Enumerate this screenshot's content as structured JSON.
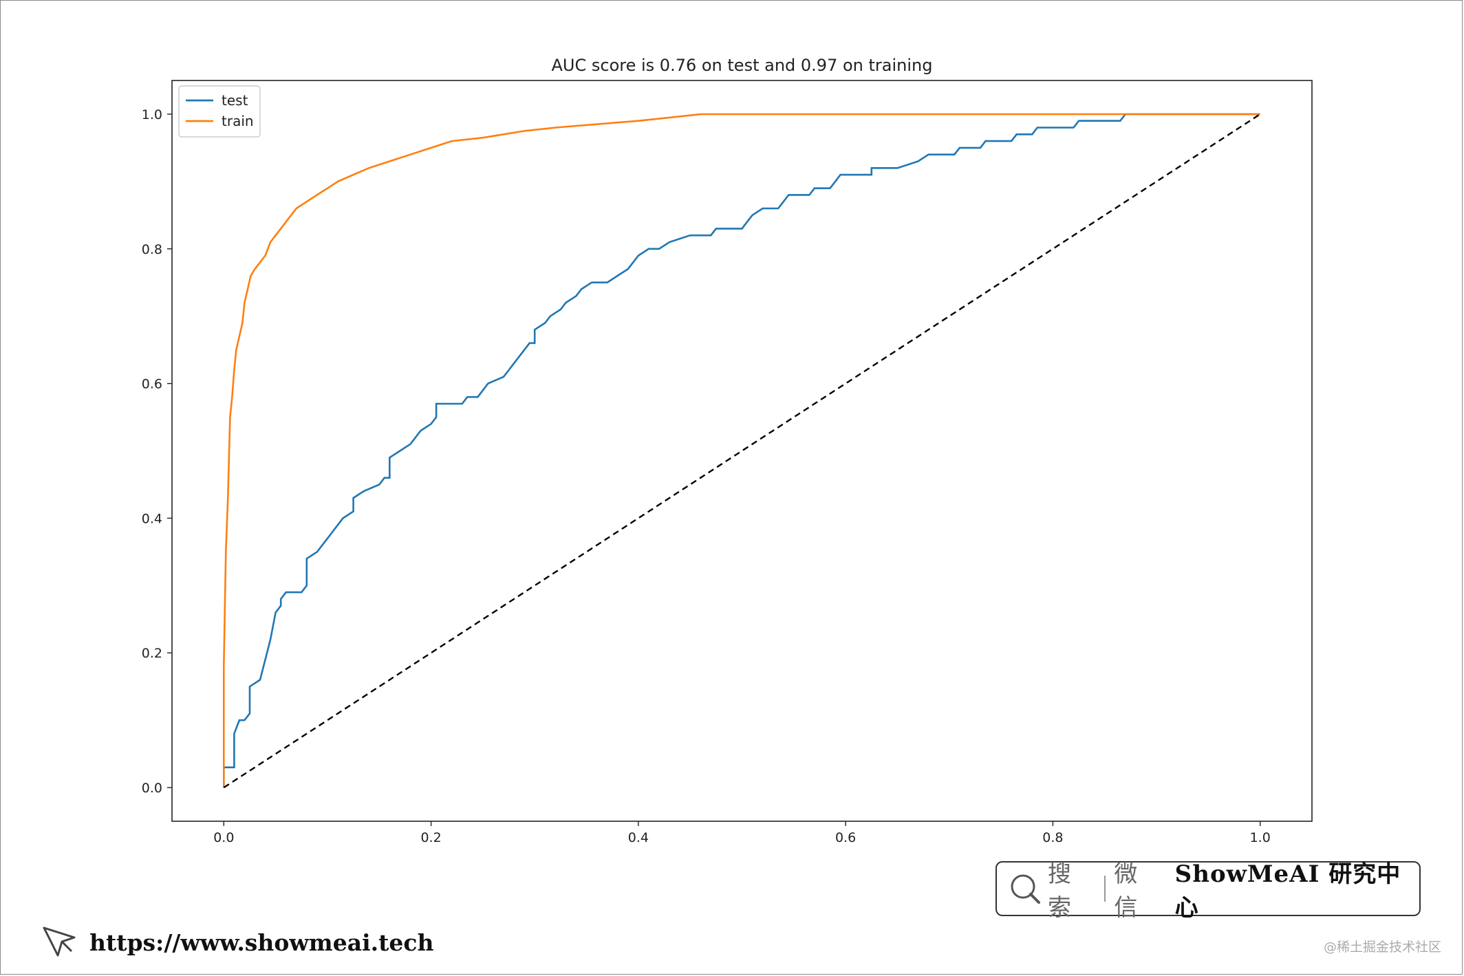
{
  "chart_data": {
    "type": "line",
    "title": "AUC score is 0.76 on test and 0.97 on training",
    "xlabel": "",
    "ylabel": "",
    "xlim": [
      -0.05,
      1.05
    ],
    "ylim": [
      -0.05,
      1.05
    ],
    "xticks": [
      "0.0",
      "0.2",
      "0.4",
      "0.6",
      "0.8",
      "1.0"
    ],
    "yticks": [
      "0.0",
      "0.2",
      "0.4",
      "0.6",
      "0.8",
      "1.0"
    ],
    "grid": false,
    "legend": "top-left",
    "series": [
      {
        "name": "test",
        "color": "#1f77b4",
        "step": true,
        "points": [
          [
            0.0,
            0.0
          ],
          [
            0.0,
            0.03
          ],
          [
            0.01,
            0.03
          ],
          [
            0.01,
            0.08
          ],
          [
            0.015,
            0.1
          ],
          [
            0.02,
            0.1
          ],
          [
            0.025,
            0.11
          ],
          [
            0.025,
            0.15
          ],
          [
            0.035,
            0.16
          ],
          [
            0.04,
            0.19
          ],
          [
            0.045,
            0.22
          ],
          [
            0.05,
            0.26
          ],
          [
            0.055,
            0.27
          ],
          [
            0.055,
            0.28
          ],
          [
            0.06,
            0.29
          ],
          [
            0.075,
            0.29
          ],
          [
            0.08,
            0.3
          ],
          [
            0.08,
            0.34
          ],
          [
            0.09,
            0.35
          ],
          [
            0.095,
            0.36
          ],
          [
            0.1,
            0.37
          ],
          [
            0.105,
            0.38
          ],
          [
            0.11,
            0.39
          ],
          [
            0.115,
            0.4
          ],
          [
            0.125,
            0.41
          ],
          [
            0.125,
            0.43
          ],
          [
            0.135,
            0.44
          ],
          [
            0.15,
            0.45
          ],
          [
            0.155,
            0.46
          ],
          [
            0.16,
            0.46
          ],
          [
            0.16,
            0.49
          ],
          [
            0.17,
            0.5
          ],
          [
            0.18,
            0.51
          ],
          [
            0.185,
            0.52
          ],
          [
            0.19,
            0.53
          ],
          [
            0.2,
            0.54
          ],
          [
            0.205,
            0.55
          ],
          [
            0.205,
            0.57
          ],
          [
            0.23,
            0.57
          ],
          [
            0.235,
            0.58
          ],
          [
            0.245,
            0.58
          ],
          [
            0.25,
            0.59
          ],
          [
            0.255,
            0.6
          ],
          [
            0.27,
            0.61
          ],
          [
            0.275,
            0.62
          ],
          [
            0.28,
            0.63
          ],
          [
            0.285,
            0.64
          ],
          [
            0.29,
            0.65
          ],
          [
            0.295,
            0.66
          ],
          [
            0.3,
            0.66
          ],
          [
            0.3,
            0.68
          ],
          [
            0.31,
            0.69
          ],
          [
            0.315,
            0.7
          ],
          [
            0.325,
            0.71
          ],
          [
            0.33,
            0.72
          ],
          [
            0.34,
            0.73
          ],
          [
            0.345,
            0.74
          ],
          [
            0.355,
            0.75
          ],
          [
            0.37,
            0.75
          ],
          [
            0.38,
            0.76
          ],
          [
            0.39,
            0.77
          ],
          [
            0.395,
            0.78
          ],
          [
            0.4,
            0.79
          ],
          [
            0.41,
            0.8
          ],
          [
            0.42,
            0.8
          ],
          [
            0.43,
            0.81
          ],
          [
            0.45,
            0.82
          ],
          [
            0.47,
            0.82
          ],
          [
            0.475,
            0.83
          ],
          [
            0.5,
            0.83
          ],
          [
            0.505,
            0.84
          ],
          [
            0.51,
            0.85
          ],
          [
            0.52,
            0.86
          ],
          [
            0.535,
            0.86
          ],
          [
            0.54,
            0.87
          ],
          [
            0.545,
            0.88
          ],
          [
            0.565,
            0.88
          ],
          [
            0.57,
            0.89
          ],
          [
            0.585,
            0.89
          ],
          [
            0.59,
            0.9
          ],
          [
            0.595,
            0.91
          ],
          [
            0.625,
            0.91
          ],
          [
            0.625,
            0.92
          ],
          [
            0.65,
            0.92
          ],
          [
            0.67,
            0.93
          ],
          [
            0.68,
            0.94
          ],
          [
            0.705,
            0.94
          ],
          [
            0.71,
            0.95
          ],
          [
            0.73,
            0.95
          ],
          [
            0.735,
            0.96
          ],
          [
            0.76,
            0.96
          ],
          [
            0.765,
            0.97
          ],
          [
            0.78,
            0.97
          ],
          [
            0.785,
            0.98
          ],
          [
            0.82,
            0.98
          ],
          [
            0.825,
            0.99
          ],
          [
            0.865,
            0.99
          ],
          [
            0.87,
            1.0
          ],
          [
            0.885,
            1.0
          ],
          [
            0.885,
            1.0
          ],
          [
            1.0,
            1.0
          ]
        ]
      },
      {
        "name": "train",
        "color": "#ff7f0e",
        "step": true,
        "points": [
          [
            0.0,
            0.0
          ],
          [
            0.0,
            0.18
          ],
          [
            0.002,
            0.35
          ],
          [
            0.004,
            0.43
          ],
          [
            0.006,
            0.55
          ],
          [
            0.008,
            0.58
          ],
          [
            0.01,
            0.62
          ],
          [
            0.012,
            0.65
          ],
          [
            0.015,
            0.67
          ],
          [
            0.018,
            0.69
          ],
          [
            0.02,
            0.72
          ],
          [
            0.023,
            0.74
          ],
          [
            0.026,
            0.76
          ],
          [
            0.03,
            0.77
          ],
          [
            0.035,
            0.78
          ],
          [
            0.04,
            0.79
          ],
          [
            0.045,
            0.81
          ],
          [
            0.05,
            0.82
          ],
          [
            0.055,
            0.83
          ],
          [
            0.06,
            0.84
          ],
          [
            0.065,
            0.85
          ],
          [
            0.07,
            0.86
          ],
          [
            0.08,
            0.87
          ],
          [
            0.09,
            0.88
          ],
          [
            0.1,
            0.89
          ],
          [
            0.11,
            0.9
          ],
          [
            0.125,
            0.91
          ],
          [
            0.14,
            0.92
          ],
          [
            0.16,
            0.93
          ],
          [
            0.18,
            0.94
          ],
          [
            0.2,
            0.95
          ],
          [
            0.22,
            0.96
          ],
          [
            0.25,
            0.965
          ],
          [
            0.27,
            0.97
          ],
          [
            0.29,
            0.975
          ],
          [
            0.32,
            0.98
          ],
          [
            0.36,
            0.985
          ],
          [
            0.4,
            0.99
          ],
          [
            0.43,
            0.995
          ],
          [
            0.46,
            1.0
          ],
          [
            1.0,
            1.0
          ]
        ]
      },
      {
        "name": "",
        "color": "#000000",
        "dashed": true,
        "points": [
          [
            0.0,
            0.0
          ],
          [
            1.0,
            1.0
          ]
        ]
      }
    ]
  },
  "promo": {
    "search_label": "搜索",
    "wechat_label": "微信",
    "brand": "ShowMeAI 研究中心",
    "url": "https://www.showmeai.tech",
    "watermark": "@稀土掘金技术社区"
  }
}
